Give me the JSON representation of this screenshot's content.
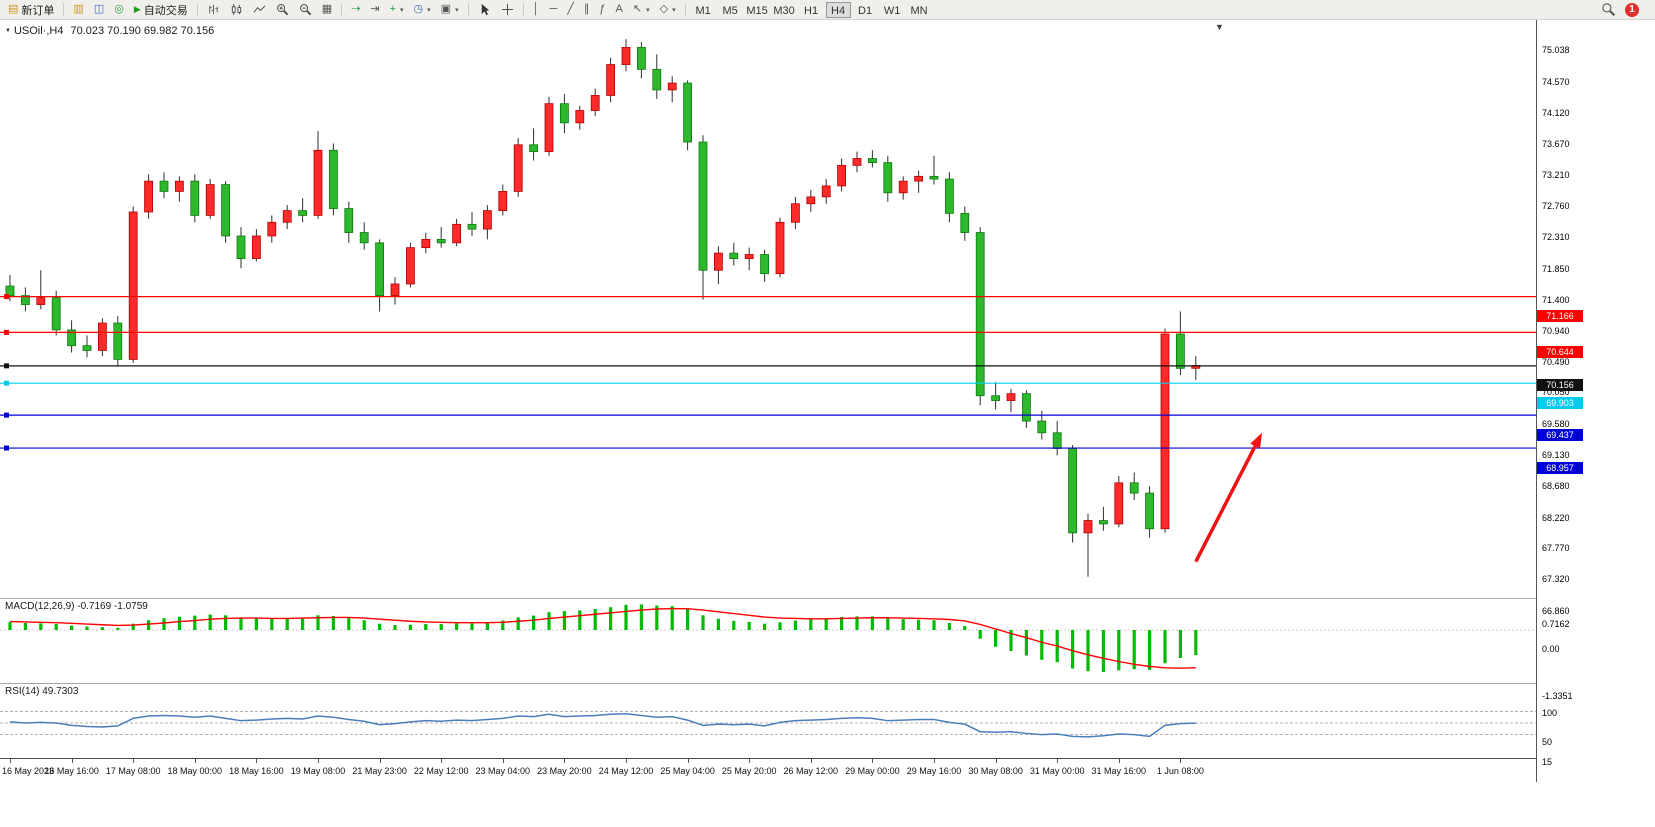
{
  "toolbar": {
    "new_order_label": "新订单",
    "autotrade_label": "自动交易",
    "timeframes": [
      "M1",
      "M5",
      "M15",
      "M30",
      "H1",
      "H4",
      "D1",
      "W1",
      "MN"
    ],
    "active_timeframe": "H4",
    "notification_count": "1",
    "text_tool_label": "A"
  },
  "icons": {
    "new_order": "▤",
    "market_watch": "▥",
    "profiles": "◫",
    "navigator": "◎",
    "play": "▶",
    "tile_windows": "▦",
    "auto_scroll": "⇢",
    "chart_shift": "⇥",
    "new_chart": "+",
    "period": "◷",
    "template": "▣",
    "dropdown": "▾",
    "vline": "│",
    "hline": "─",
    "trendline": "╱",
    "channel": "∥",
    "fibonacci": "ƒ",
    "arrow_tool": "↖",
    "shapes": "◇",
    "chart_shift_marker": "▼",
    "symbol_caret": "▼"
  },
  "chart": {
    "title": "USOil·,H4",
    "ohlc": "70.023 70.190 69.982 70.156"
  },
  "colors": {
    "bull": "#ff2a2a",
    "bull_border": "#b40000",
    "bear": "#2db82d",
    "bear_border": "#0e7a0e",
    "wick": "#303030",
    "macd_hist": "#00bb00",
    "macd_signal": "#ff0000",
    "rsi_line": "#4a7ebb",
    "arrow": "#f01212"
  },
  "chart_data": {
    "type": "candlestick",
    "symbol": "USOil",
    "timeframe": "H4",
    "x_labels": [
      "16 May 2023",
      "16 May 16:00",
      "17 May 08:00",
      "18 May 00:00",
      "18 May 16:00",
      "19 May 08:00",
      "21 May 23:00",
      "22 May 12:00",
      "23 May 04:00",
      "23 May 20:00",
      "24 May 12:00",
      "25 May 04:00",
      "25 May 20:00",
      "26 May 12:00",
      "29 May 00:00",
      "29 May 16:00",
      "30 May 08:00",
      "31 May 00:00",
      "31 May 16:00",
      "1 Jun 08:00"
    ],
    "candles_per_label": 4,
    "price_axis_ticks": [
      "75.038",
      "74.570",
      "74.120",
      "73.670",
      "73.210",
      "72.760",
      "72.310",
      "71.850",
      "71.400",
      "70.940",
      "70.490",
      "70.050",
      "69.580",
      "69.130",
      "68.680",
      "68.220",
      "67.770",
      "67.320",
      "66.860"
    ],
    "ylim": [
      66.77,
      75.2
    ],
    "current_price": "70.156",
    "candles": [
      [
        71.32,
        71.48,
        71.1,
        71.18
      ],
      [
        71.18,
        71.3,
        70.95,
        71.05
      ],
      [
        71.05,
        71.55,
        70.98,
        71.15
      ],
      [
        71.15,
        71.25,
        70.6,
        70.68
      ],
      [
        70.68,
        70.82,
        70.35,
        70.45
      ],
      [
        70.45,
        70.6,
        70.28,
        70.38
      ],
      [
        70.38,
        70.85,
        70.3,
        70.78
      ],
      [
        70.78,
        70.88,
        70.15,
        70.25
      ],
      [
        70.25,
        72.48,
        70.2,
        72.4
      ],
      [
        72.4,
        72.95,
        72.3,
        72.85
      ],
      [
        72.85,
        72.98,
        72.6,
        72.7
      ],
      [
        72.7,
        72.92,
        72.55,
        72.85
      ],
      [
        72.85,
        72.95,
        72.25,
        72.35
      ],
      [
        72.35,
        72.88,
        72.3,
        72.8
      ],
      [
        72.8,
        72.85,
        71.95,
        72.05
      ],
      [
        72.05,
        72.18,
        71.58,
        71.72
      ],
      [
        71.72,
        72.15,
        71.68,
        72.05
      ],
      [
        72.05,
        72.35,
        71.95,
        72.25
      ],
      [
        72.25,
        72.5,
        72.15,
        72.42
      ],
      [
        72.42,
        72.6,
        72.25,
        72.35
      ],
      [
        72.35,
        73.58,
        72.3,
        73.3
      ],
      [
        73.3,
        73.4,
        72.35,
        72.45
      ],
      [
        72.45,
        72.55,
        71.95,
        72.1
      ],
      [
        72.1,
        72.25,
        71.85,
        71.95
      ],
      [
        71.95,
        72.0,
        70.95,
        71.18
      ],
      [
        71.18,
        71.45,
        71.05,
        71.35
      ],
      [
        71.35,
        71.95,
        71.3,
        71.88
      ],
      [
        71.88,
        72.1,
        71.8,
        72.0
      ],
      [
        72.0,
        72.18,
        71.88,
        71.95
      ],
      [
        71.95,
        72.3,
        71.9,
        72.22
      ],
      [
        72.22,
        72.4,
        72.05,
        72.15
      ],
      [
        72.15,
        72.5,
        72.0,
        72.42
      ],
      [
        72.42,
        72.8,
        72.35,
        72.7
      ],
      [
        72.7,
        73.48,
        72.62,
        73.38
      ],
      [
        73.38,
        73.62,
        73.15,
        73.28
      ],
      [
        73.28,
        74.08,
        73.22,
        73.98
      ],
      [
        73.98,
        74.12,
        73.55,
        73.7
      ],
      [
        73.7,
        73.95,
        73.6,
        73.88
      ],
      [
        73.88,
        74.2,
        73.8,
        74.1
      ],
      [
        74.1,
        74.65,
        74.0,
        74.55
      ],
      [
        74.55,
        74.92,
        74.45,
        74.8
      ],
      [
        74.8,
        74.88,
        74.35,
        74.48
      ],
      [
        74.48,
        74.7,
        74.05,
        74.18
      ],
      [
        74.18,
        74.38,
        74.0,
        74.28
      ],
      [
        74.28,
        74.32,
        73.3,
        73.42
      ],
      [
        73.42,
        73.52,
        71.12,
        71.55
      ],
      [
        71.55,
        71.9,
        71.35,
        71.8
      ],
      [
        71.8,
        71.95,
        71.62,
        71.72
      ],
      [
        71.72,
        71.88,
        71.55,
        71.78
      ],
      [
        71.78,
        71.85,
        71.38,
        71.5
      ],
      [
        71.5,
        72.32,
        71.45,
        72.25
      ],
      [
        72.25,
        72.62,
        72.15,
        72.52
      ],
      [
        72.52,
        72.72,
        72.4,
        72.62
      ],
      [
        72.62,
        72.88,
        72.52,
        72.78
      ],
      [
        72.78,
        73.18,
        72.7,
        73.08
      ],
      [
        73.08,
        73.28,
        72.98,
        73.18
      ],
      [
        73.18,
        73.3,
        73.05,
        73.12
      ],
      [
        73.12,
        73.22,
        72.55,
        72.68
      ],
      [
        72.68,
        72.92,
        72.58,
        72.85
      ],
      [
        72.85,
        73.0,
        72.68,
        72.92
      ],
      [
        72.92,
        73.22,
        72.8,
        72.88
      ],
      [
        72.88,
        72.98,
        72.25,
        72.38
      ],
      [
        72.38,
        72.48,
        71.98,
        72.1
      ],
      [
        72.1,
        72.18,
        69.58,
        69.72
      ],
      [
        69.72,
        69.92,
        69.52,
        69.65
      ],
      [
        69.65,
        69.82,
        69.48,
        69.75
      ],
      [
        69.75,
        69.8,
        69.25,
        69.35
      ],
      [
        69.35,
        69.5,
        69.08,
        69.18
      ],
      [
        69.18,
        69.35,
        68.85,
        68.95
      ],
      [
        68.95,
        69.0,
        67.58,
        67.72
      ],
      [
        67.72,
        68.0,
        67.08,
        67.9
      ],
      [
        67.9,
        68.1,
        67.75,
        67.85
      ],
      [
        67.85,
        68.55,
        67.8,
        68.45
      ],
      [
        68.45,
        68.6,
        68.2,
        68.3
      ],
      [
        68.3,
        68.4,
        67.65,
        67.78
      ],
      [
        67.78,
        70.7,
        67.72,
        70.62
      ],
      [
        70.62,
        70.95,
        70.02,
        70.12
      ],
      [
        70.12,
        70.3,
        69.95,
        70.16
      ]
    ],
    "hlines": [
      {
        "price": 71.166,
        "label": "71.166",
        "color": "#ff0000"
      },
      {
        "price": 70.644,
        "label": "70.644",
        "color": "#ff0000"
      },
      {
        "price": 70.156,
        "label": "70.156",
        "color": "#111111"
      },
      {
        "price": 69.903,
        "label": "69.903",
        "color": "#00ccee"
      },
      {
        "price": 69.437,
        "label": "69.437",
        "color": "#0000d8"
      },
      {
        "price": 68.957,
        "label": "68.957",
        "color": "#0000d8"
      }
    ],
    "arrow": {
      "x1_index": 77,
      "price1": 67.3,
      "x2_index": 81.3,
      "price2": 69.18
    },
    "macd": {
      "name": "MACD(12,26,9)",
      "values_text": "-0.7169 -1.0759",
      "axis_ticks": [
        "0.7162",
        "0.00",
        "-1.3351"
      ],
      "ylim": [
        -1.46,
        0.85
      ],
      "hist": [
        0.22,
        0.2,
        0.19,
        0.17,
        0.13,
        0.1,
        0.08,
        0.06,
        0.18,
        0.28,
        0.34,
        0.38,
        0.41,
        0.44,
        0.42,
        0.36,
        0.33,
        0.33,
        0.34,
        0.34,
        0.42,
        0.4,
        0.34,
        0.28,
        0.18,
        0.14,
        0.15,
        0.17,
        0.17,
        0.19,
        0.19,
        0.22,
        0.27,
        0.36,
        0.41,
        0.51,
        0.54,
        0.56,
        0.6,
        0.65,
        0.72,
        0.73,
        0.7,
        0.68,
        0.6,
        0.42,
        0.32,
        0.26,
        0.23,
        0.18,
        0.22,
        0.27,
        0.3,
        0.33,
        0.37,
        0.39,
        0.39,
        0.34,
        0.31,
        0.29,
        0.28,
        0.2,
        0.11,
        -0.25,
        -0.48,
        -0.6,
        -0.73,
        -0.85,
        -0.92,
        -1.1,
        -1.18,
        -1.2,
        -1.15,
        -1.12,
        -1.14,
        -0.95,
        -0.8,
        -0.7169
      ],
      "signal": [
        0.24,
        0.23,
        0.22,
        0.21,
        0.19,
        0.17,
        0.15,
        0.13,
        0.14,
        0.17,
        0.2,
        0.24,
        0.27,
        0.31,
        0.33,
        0.34,
        0.34,
        0.33,
        0.33,
        0.34,
        0.35,
        0.36,
        0.36,
        0.34,
        0.31,
        0.28,
        0.25,
        0.23,
        0.22,
        0.21,
        0.21,
        0.21,
        0.22,
        0.25,
        0.28,
        0.33,
        0.37,
        0.41,
        0.45,
        0.49,
        0.53,
        0.57,
        0.6,
        0.61,
        0.61,
        0.57,
        0.52,
        0.47,
        0.42,
        0.37,
        0.34,
        0.33,
        0.32,
        0.32,
        0.33,
        0.34,
        0.35,
        0.35,
        0.34,
        0.33,
        0.32,
        0.3,
        0.26,
        0.16,
        0.03,
        -0.1,
        -0.22,
        -0.35,
        -0.46,
        -0.59,
        -0.71,
        -0.81,
        -0.9,
        -0.98,
        -1.04,
        -1.08,
        -1.09,
        -1.0759
      ]
    },
    "rsi": {
      "name": "RSI(14)",
      "value_text": "49.7303",
      "axis_ticks": [
        "100",
        "50",
        "15"
      ],
      "levels": [
        70,
        50,
        30
      ],
      "ylim": [
        0,
        100
      ],
      "values": [
        52,
        50,
        51,
        50,
        46,
        44,
        43,
        45,
        58,
        62,
        63,
        62,
        60,
        62,
        58,
        54,
        55,
        57,
        58,
        57,
        62,
        60,
        56,
        53,
        47,
        49,
        52,
        54,
        53,
        55,
        54,
        56,
        58,
        62,
        61,
        65,
        61,
        62,
        63,
        65,
        66,
        63,
        60,
        61,
        55,
        46,
        48,
        47,
        48,
        45,
        51,
        54,
        55,
        56,
        58,
        59,
        58,
        54,
        55,
        56,
        56,
        51,
        48,
        35,
        34,
        35,
        32,
        30,
        31,
        27,
        26,
        28,
        31,
        30,
        27,
        46,
        49,
        49.73
      ]
    }
  }
}
